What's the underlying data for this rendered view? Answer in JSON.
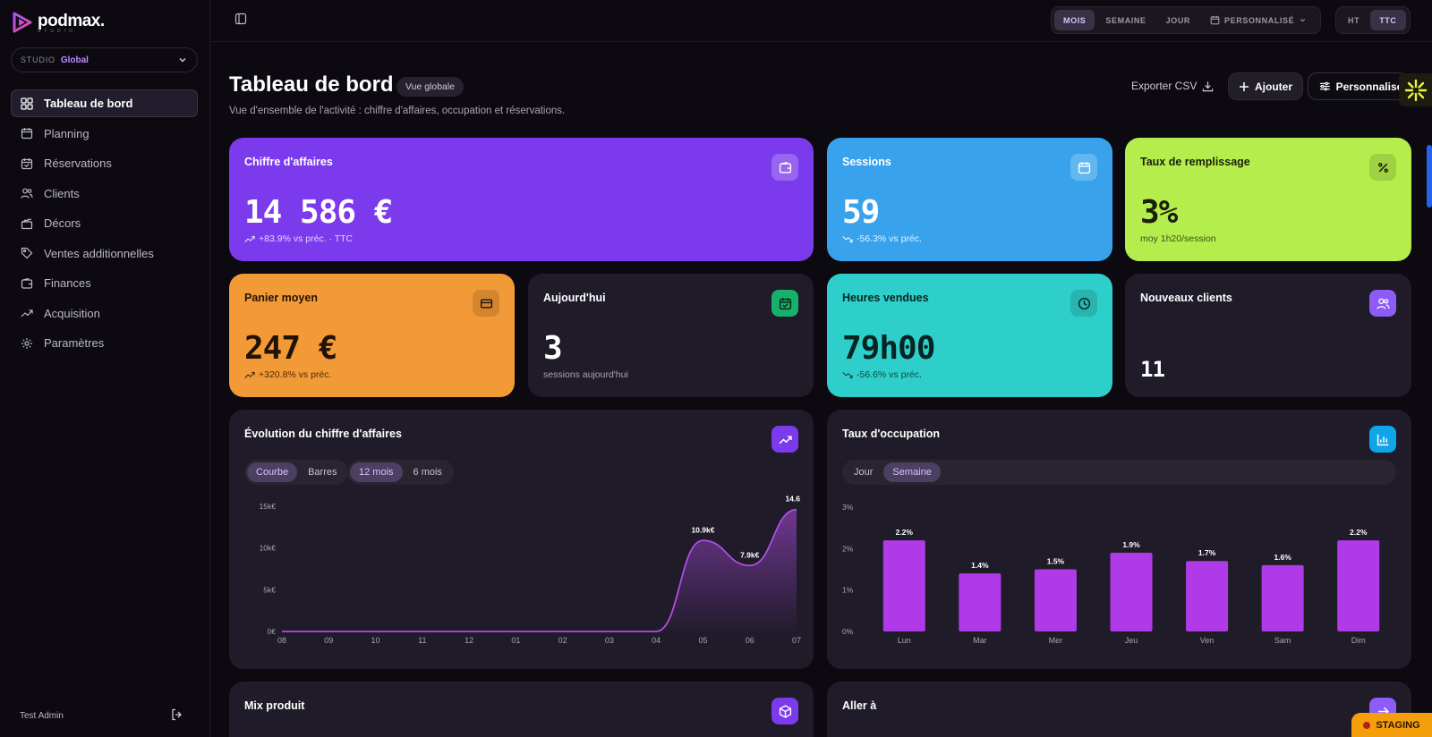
{
  "app": {
    "logo_text": "podmax.",
    "logo_sub": "studio"
  },
  "studio": {
    "label": "STUDIO",
    "value": "Global"
  },
  "nav": [
    {
      "label": "Tableau de bord",
      "icon": "grid-icon",
      "active": true
    },
    {
      "label": "Planning",
      "icon": "calendar-icon"
    },
    {
      "label": "Réservations",
      "icon": "calendar-check-icon"
    },
    {
      "label": "Clients",
      "icon": "users-icon"
    },
    {
      "label": "Décors",
      "icon": "clapperboard-icon"
    },
    {
      "label": "Ventes additionnelles",
      "icon": "tag-icon"
    },
    {
      "label": "Finances",
      "icon": "wallet-icon"
    },
    {
      "label": "Acquisition",
      "icon": "trending-up-icon"
    },
    {
      "label": "Paramètres",
      "icon": "gear-icon"
    }
  ],
  "user": {
    "name": "Test Admin"
  },
  "period": {
    "options": [
      "MOIS",
      "SEMAINE",
      "JOUR"
    ],
    "selected": "MOIS",
    "custom": "PERSONNALISÉ"
  },
  "tax": {
    "options": [
      "HT",
      "TTC"
    ],
    "selected": "TTC"
  },
  "header": {
    "title": "Tableau de bord",
    "badge": "Vue globale",
    "subtitle": "Vue d'ensemble de l'activité : chiffre d'affaires, occupation et réservations.",
    "export": "Exporter CSV",
    "add": "Ajouter",
    "customize": "Personnaliser"
  },
  "kpis": {
    "revenue": {
      "title": "Chiffre d'affaires",
      "value": "14 586 €",
      "delta": "+83.9% vs préc. · TTC",
      "color": "#7c3aed"
    },
    "sessions": {
      "title": "Sessions",
      "value": "59",
      "delta": "-56.3% vs préc.",
      "color": "#38a3ec"
    },
    "fill": {
      "title": "Taux de remplissage",
      "value": "3%",
      "sub": "moy 1h20/session",
      "color": "#b5ee4c"
    },
    "basket": {
      "title": "Panier moyen",
      "value": "247 €",
      "delta": "+320.8% vs préc.",
      "color": "#f39a38"
    },
    "today": {
      "title": "Aujourd'hui",
      "value": "3",
      "sub": "sessions aujourd'hui"
    },
    "hours": {
      "title": "Heures vendues",
      "value": "79h00",
      "delta": "-56.6% vs préc.",
      "color": "#2ecfca"
    },
    "new_clients": {
      "title": "Nouveaux clients",
      "value": "11"
    }
  },
  "revenue_chart": {
    "title": "Évolution du chiffre d'affaires",
    "type_tabs": [
      "Courbe",
      "Barres"
    ],
    "type_selected": "Courbe",
    "range_tabs": [
      "12 mois",
      "6 mois"
    ],
    "range_selected": "12 mois"
  },
  "occupancy_chart": {
    "title": "Taux d'occupation",
    "tabs": [
      "Jour",
      "Semaine"
    ],
    "selected": "Semaine"
  },
  "bottom": {
    "mix_title": "Mix produit",
    "goto_title": "Aller à"
  },
  "env_badge": "STAGING",
  "chart_data": [
    {
      "type": "area",
      "title": "Évolution du chiffre d'affaires",
      "categories": [
        "08",
        "09",
        "10",
        "11",
        "12",
        "01",
        "02",
        "03",
        "04",
        "05",
        "06",
        "07"
      ],
      "values": [
        0,
        0,
        0,
        0,
        0,
        0,
        0,
        0,
        0,
        10.9,
        7.9,
        14.6
      ],
      "unit": "k€",
      "data_labels": {
        "9": "10.9k€",
        "10": "7.9k€",
        "11": "14.6"
      },
      "yticks": [
        "0€",
        "5k€",
        "10k€",
        "15k€"
      ],
      "ylim": [
        0,
        15
      ],
      "color": "#b04de8"
    },
    {
      "type": "bar",
      "title": "Taux d'occupation",
      "categories": [
        "Lun",
        "Mar",
        "Mer",
        "Jeu",
        "Ven",
        "Sam",
        "Dim"
      ],
      "values": [
        2.2,
        1.4,
        1.5,
        1.9,
        1.7,
        1.6,
        2.2
      ],
      "data_labels": [
        "2.2%",
        "1.4%",
        "1.5%",
        "1.9%",
        "1.7%",
        "1.6%",
        "2.2%"
      ],
      "yticks": [
        "0%",
        "1%",
        "2%",
        "3%"
      ],
      "ylim": [
        0,
        3
      ],
      "color": "#b13ae8"
    }
  ]
}
